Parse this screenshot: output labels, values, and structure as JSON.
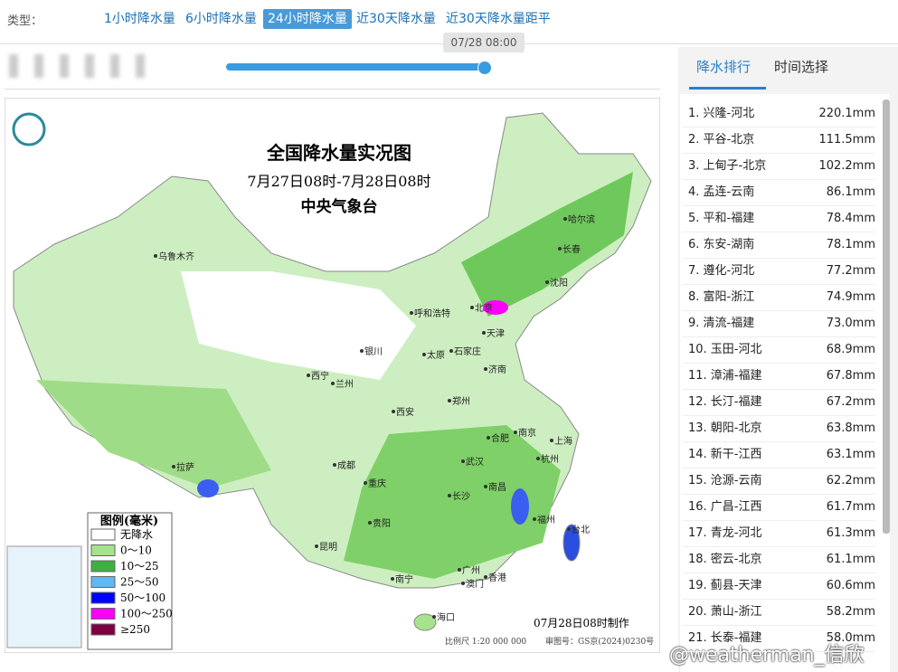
{
  "header": {
    "type_label": "类型：",
    "tabs": [
      {
        "label": "1小时降水量",
        "active": false
      },
      {
        "label": "6小时降水量",
        "active": false
      },
      {
        "label": "24小时降水量",
        "active": true
      },
      {
        "label": "近30天降水量",
        "active": false
      },
      {
        "label": "近30天降水量距平",
        "active": false
      }
    ]
  },
  "slider": {
    "time": "07/28 08:00"
  },
  "map": {
    "title": "全国降水量实况图",
    "period": "7月27日08时-7月28日08时",
    "agency": "中央气象台",
    "legend_title": "图例(毫米)",
    "legend": [
      {
        "label": "无降水",
        "color": "#ffffff"
      },
      {
        "label": "0～10",
        "color": "#a6e38f"
      },
      {
        "label": "10～25",
        "color": "#3cb043"
      },
      {
        "label": "25～50",
        "color": "#61b8f2"
      },
      {
        "label": "50～100",
        "color": "#0000fe"
      },
      {
        "label": "100～250",
        "color": "#fa00fa"
      },
      {
        "label": "≥250",
        "color": "#7f0040"
      }
    ],
    "cities": [
      "乌鲁木齐",
      "哈尔滨",
      "长春",
      "沈阳",
      "呼和浩特",
      "北京",
      "天津",
      "银川",
      "太原",
      "石家庄",
      "济南",
      "西宁",
      "兰州",
      "郑州",
      "西安",
      "合肥",
      "南京",
      "上海",
      "拉萨",
      "成都",
      "武汉",
      "杭州",
      "重庆",
      "长沙",
      "南昌",
      "福州",
      "贵阳",
      "台北",
      "昆明",
      "南宁",
      "广州",
      "香港",
      "澳门",
      "海口"
    ],
    "made_time": "07月28日08时制作",
    "scale": "比例尺 1:20 000 000",
    "approval": "审图号：GS京(2024)0230号"
  },
  "side_panel": {
    "tabs": [
      "降水排行",
      "时间选择"
    ],
    "ranking": [
      {
        "name": "1. 兴隆-河北",
        "value": "220.1mm"
      },
      {
        "name": "2. 平谷-北京",
        "value": "111.5mm"
      },
      {
        "name": "3. 上甸子-北京",
        "value": "102.2mm"
      },
      {
        "name": "4. 孟连-云南",
        "value": "86.1mm"
      },
      {
        "name": "5. 平和-福建",
        "value": "78.4mm"
      },
      {
        "name": "6. 东安-湖南",
        "value": "78.1mm"
      },
      {
        "name": "7. 遵化-河北",
        "value": "77.2mm"
      },
      {
        "name": "8. 富阳-浙江",
        "value": "74.9mm"
      },
      {
        "name": "9. 清流-福建",
        "value": "73.0mm"
      },
      {
        "name": "10. 玉田-河北",
        "value": "68.9mm"
      },
      {
        "name": "11. 漳浦-福建",
        "value": "67.8mm"
      },
      {
        "name": "12. 长汀-福建",
        "value": "67.2mm"
      },
      {
        "name": "13. 朝阳-北京",
        "value": "63.8mm"
      },
      {
        "name": "14. 新干-江西",
        "value": "63.1mm"
      },
      {
        "name": "15. 沧源-云南",
        "value": "62.2mm"
      },
      {
        "name": "16. 广昌-江西",
        "value": "61.7mm"
      },
      {
        "name": "17. 青龙-河北",
        "value": "61.3mm"
      },
      {
        "name": "18. 密云-北京",
        "value": "61.1mm"
      },
      {
        "name": "19. 蓟县-天津",
        "value": "60.6mm"
      },
      {
        "name": "20. 萧山-浙江",
        "value": "58.2mm"
      },
      {
        "name": "21. 长泰-福建",
        "value": "58.0mm"
      }
    ]
  },
  "watermark": "@weatherman_信欣"
}
